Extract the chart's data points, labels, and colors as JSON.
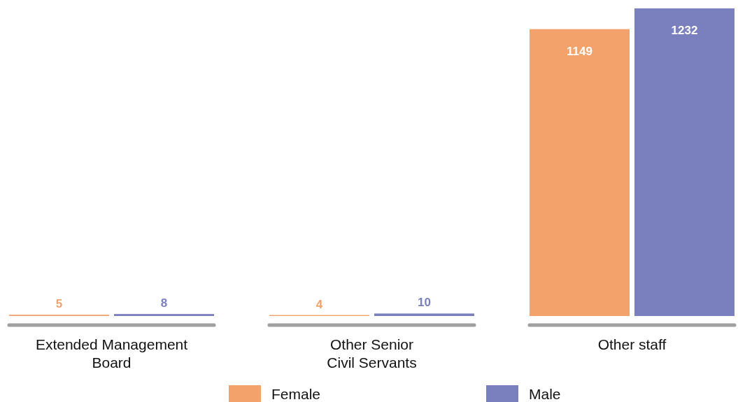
{
  "chart_data": {
    "type": "bar",
    "categories": [
      "Extended Management\nBoard",
      "Other Senior\nCivil Servants",
      "Other staff"
    ],
    "data_labels": true,
    "legend": "bottom",
    "series": [
      {
        "name": "Female",
        "color": "#f4a26c",
        "values": [
          5,
          4,
          1149
        ]
      },
      {
        "name": "Male",
        "color": "#7a80bd",
        "values": [
          8,
          10,
          1232
        ]
      }
    ]
  }
}
